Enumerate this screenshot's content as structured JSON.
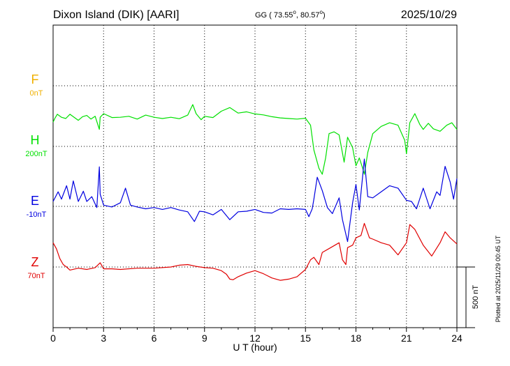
{
  "header": {
    "station": "Dixon Island (DIK)  [AARI]",
    "coords": "GG ( 73.55",
    "coords_lon": ",  80.57",
    "coords_end": ")",
    "date": "2025/10/29"
  },
  "side_note": "Plotted at 2025/11/29 00:45 UT",
  "colors": {
    "F": "#f0b000",
    "H": "#00e000",
    "E": "#0000e0",
    "Z": "#e00000"
  },
  "chart_data": {
    "type": "line",
    "xlabel": "U T (hour)",
    "xlim": [
      0,
      24
    ],
    "xticks": [
      "0",
      "3",
      "6",
      "9",
      "12",
      "15",
      "18",
      "21",
      "24"
    ],
    "scale_label": "500 nT",
    "scale_nT": 500,
    "series": [
      {
        "name": "F",
        "baseline": "0nT",
        "points": []
      },
      {
        "name": "H",
        "baseline": "200nT",
        "points": [
          [
            0,
            200
          ],
          [
            0.1,
            230
          ],
          [
            0.25,
            265
          ],
          [
            0.5,
            240
          ],
          [
            0.75,
            230
          ],
          [
            1,
            265
          ],
          [
            1.25,
            240
          ],
          [
            1.5,
            215
          ],
          [
            1.75,
            245
          ],
          [
            2,
            255
          ],
          [
            2.25,
            225
          ],
          [
            2.5,
            248
          ],
          [
            2.75,
            140
          ],
          [
            2.8,
            240
          ],
          [
            3,
            270
          ],
          [
            3.5,
            238
          ],
          [
            4,
            240
          ],
          [
            4.5,
            248
          ],
          [
            5,
            225
          ],
          [
            5.5,
            258
          ],
          [
            6,
            240
          ],
          [
            6.5,
            230
          ],
          [
            7,
            240
          ],
          [
            7.5,
            228
          ],
          [
            8,
            258
          ],
          [
            8.3,
            345
          ],
          [
            8.5,
            270
          ],
          [
            8.8,
            220
          ],
          [
            9,
            248
          ],
          [
            9.5,
            238
          ],
          [
            10,
            290
          ],
          [
            10.5,
            320
          ],
          [
            11,
            275
          ],
          [
            11.5,
            285
          ],
          [
            12,
            268
          ],
          [
            12.5,
            260
          ],
          [
            13,
            245
          ],
          [
            13.5,
            235
          ],
          [
            14,
            230
          ],
          [
            14.5,
            225
          ],
          [
            15,
            232
          ],
          [
            15.3,
            175
          ],
          [
            15.5,
            -30
          ],
          [
            15.8,
            -180
          ],
          [
            16,
            -230
          ],
          [
            16.2,
            -95
          ],
          [
            16.4,
            105
          ],
          [
            16.7,
            120
          ],
          [
            17,
            95
          ],
          [
            17.3,
            -130
          ],
          [
            17.5,
            75
          ],
          [
            17.8,
            -10
          ],
          [
            18,
            -160
          ],
          [
            18.2,
            -95
          ],
          [
            18.4,
            -180
          ],
          [
            18.5,
            -230
          ],
          [
            18.7,
            -50
          ],
          [
            19,
            105
          ],
          [
            19.5,
            165
          ],
          [
            20,
            195
          ],
          [
            20.5,
            175
          ],
          [
            20.9,
            50
          ],
          [
            21,
            -60
          ],
          [
            21.2,
            195
          ],
          [
            21.5,
            270
          ],
          [
            21.8,
            180
          ],
          [
            22,
            140
          ],
          [
            22.3,
            190
          ],
          [
            22.6,
            145
          ],
          [
            23,
            125
          ],
          [
            23.4,
            175
          ],
          [
            23.7,
            195
          ],
          [
            24,
            140
          ]
        ]
      },
      {
        "name": "E",
        "baseline": "-10nT",
        "points": [
          [
            0,
            40
          ],
          [
            0.3,
            120
          ],
          [
            0.5,
            60
          ],
          [
            0.8,
            170
          ],
          [
            1,
            60
          ],
          [
            1.2,
            210
          ],
          [
            1.5,
            40
          ],
          [
            1.8,
            125
          ],
          [
            2,
            40
          ],
          [
            2.3,
            80
          ],
          [
            2.6,
            -10
          ],
          [
            2.75,
            325
          ],
          [
            2.8,
            100
          ],
          [
            3,
            10
          ],
          [
            3.5,
            -5
          ],
          [
            4,
            30
          ],
          [
            4.3,
            150
          ],
          [
            4.6,
            10
          ],
          [
            5,
            -5
          ],
          [
            5.5,
            -20
          ],
          [
            6,
            -10
          ],
          [
            6.5,
            -25
          ],
          [
            7,
            -10
          ],
          [
            7.5,
            -30
          ],
          [
            8,
            -45
          ],
          [
            8.4,
            -125
          ],
          [
            8.7,
            -40
          ],
          [
            9,
            -45
          ],
          [
            9.5,
            -70
          ],
          [
            10,
            -25
          ],
          [
            10.5,
            -110
          ],
          [
            11,
            -45
          ],
          [
            11.5,
            -40
          ],
          [
            12,
            -25
          ],
          [
            12.5,
            -50
          ],
          [
            13,
            -55
          ],
          [
            13.5,
            -20
          ],
          [
            14,
            -25
          ],
          [
            14.5,
            -20
          ],
          [
            15,
            -25
          ],
          [
            15.2,
            -85
          ],
          [
            15.4,
            -20
          ],
          [
            15.5,
            60
          ],
          [
            15.7,
            240
          ],
          [
            16,
            130
          ],
          [
            16.3,
            -10
          ],
          [
            16.6,
            -60
          ],
          [
            17,
            70
          ],
          [
            17.2,
            -110
          ],
          [
            17.5,
            -290
          ],
          [
            17.8,
            30
          ],
          [
            18,
            180
          ],
          [
            18.2,
            -30
          ],
          [
            18.5,
            390
          ],
          [
            18.7,
            80
          ],
          [
            19,
            70
          ],
          [
            19.5,
            120
          ],
          [
            20,
            170
          ],
          [
            20.5,
            150
          ],
          [
            21,
            50
          ],
          [
            21.3,
            40
          ],
          [
            21.6,
            -20
          ],
          [
            22,
            150
          ],
          [
            22.4,
            -20
          ],
          [
            22.8,
            120
          ],
          [
            23,
            90
          ],
          [
            23.3,
            330
          ],
          [
            23.6,
            200
          ],
          [
            23.8,
            60
          ],
          [
            24,
            230
          ]
        ]
      },
      {
        "name": "Z",
        "baseline": "70nT",
        "points": [
          [
            0,
            200
          ],
          [
            0.2,
            150
          ],
          [
            0.4,
            70
          ],
          [
            0.6,
            20
          ],
          [
            0.8,
            0
          ],
          [
            1,
            -25
          ],
          [
            1.5,
            -10
          ],
          [
            2,
            -20
          ],
          [
            2.5,
            -5
          ],
          [
            2.8,
            35
          ],
          [
            3,
            -15
          ],
          [
            3.5,
            -15
          ],
          [
            4,
            -20
          ],
          [
            5,
            -10
          ],
          [
            6,
            -10
          ],
          [
            7,
            0
          ],
          [
            7.5,
            15
          ],
          [
            8,
            20
          ],
          [
            8.5,
            5
          ],
          [
            9,
            -5
          ],
          [
            9.5,
            -10
          ],
          [
            10,
            -30
          ],
          [
            10.3,
            -60
          ],
          [
            10.5,
            -100
          ],
          [
            10.7,
            -105
          ],
          [
            11,
            -80
          ],
          [
            11.5,
            -50
          ],
          [
            12,
            -30
          ],
          [
            12.5,
            -55
          ],
          [
            13,
            -90
          ],
          [
            13.5,
            -110
          ],
          [
            14,
            -100
          ],
          [
            14.5,
            -80
          ],
          [
            15,
            -20
          ],
          [
            15.3,
            60
          ],
          [
            15.5,
            80
          ],
          [
            15.8,
            20
          ],
          [
            16,
            120
          ],
          [
            16.5,
            160
          ],
          [
            17,
            200
          ],
          [
            17.2,
            60
          ],
          [
            17.4,
            20
          ],
          [
            17.5,
            160
          ],
          [
            17.8,
            180
          ],
          [
            18,
            240
          ],
          [
            18.3,
            260
          ],
          [
            18.5,
            360
          ],
          [
            18.8,
            240
          ],
          [
            19,
            230
          ],
          [
            19.5,
            200
          ],
          [
            20,
            180
          ],
          [
            20.5,
            100
          ],
          [
            21,
            200
          ],
          [
            21.2,
            350
          ],
          [
            21.5,
            310
          ],
          [
            22,
            180
          ],
          [
            22.5,
            90
          ],
          [
            23,
            200
          ],
          [
            23.3,
            290
          ],
          [
            23.6,
            240
          ],
          [
            24,
            190
          ]
        ]
      }
    ]
  }
}
